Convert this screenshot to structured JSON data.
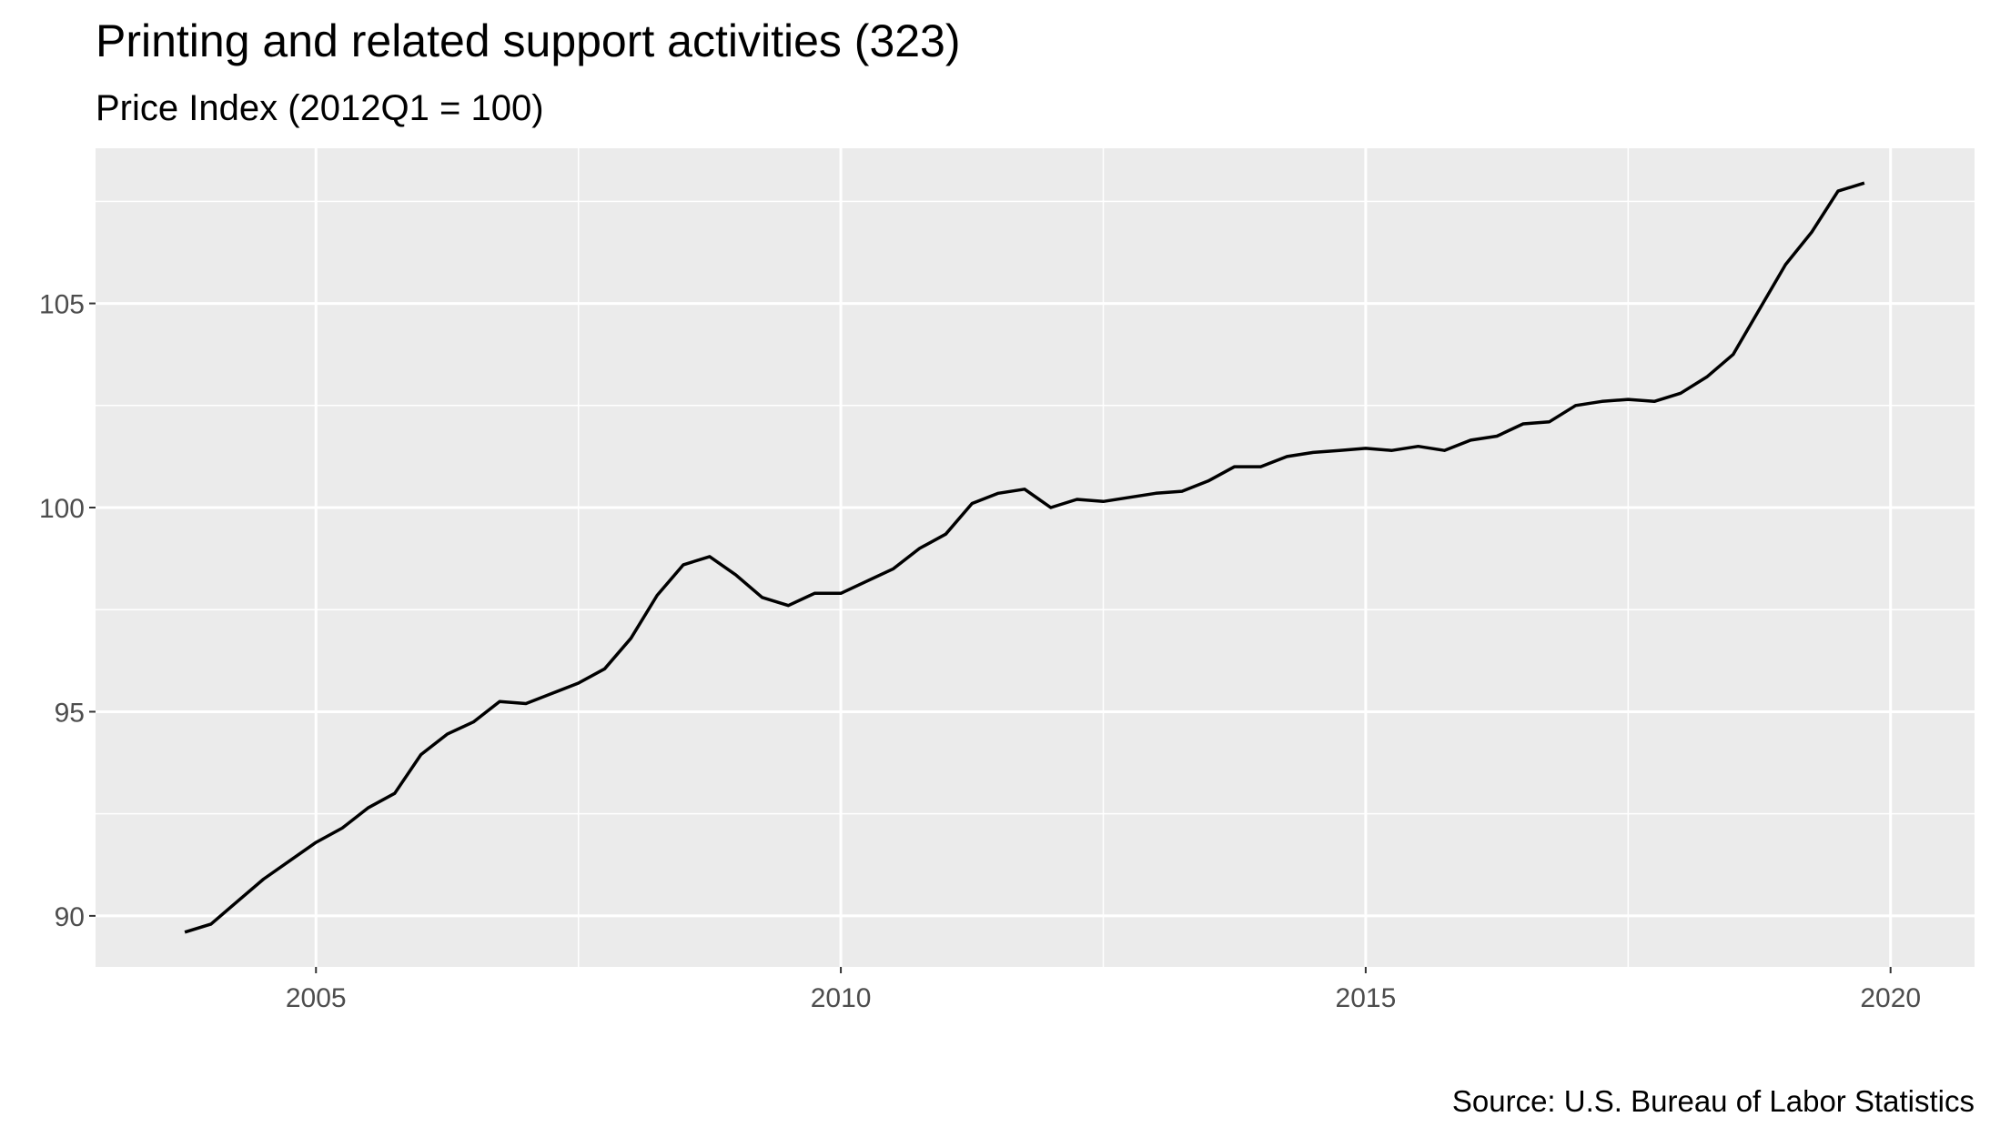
{
  "chart_data": {
    "type": "line",
    "title": "Printing and related support activities (323)",
    "subtitle": "Price Index (2012Q1 = 100)",
    "caption": "Source: U.S. Bureau of Labor Statistics",
    "xlabel": "",
    "ylabel": "",
    "xlim": [
      2002.9,
      2020.8
    ],
    "ylim": [
      88.75,
      108.8
    ],
    "x_ticks": [
      2005,
      2010,
      2015,
      2020
    ],
    "y_ticks": [
      90,
      95,
      100,
      105
    ],
    "grid": true,
    "colors": {
      "panel": "#ebebeb",
      "grid": "#ffffff",
      "line": "#000000",
      "tick_text": "#4d4d4d"
    },
    "series": [
      {
        "x": [
          2003.75,
          2004.0,
          2004.25,
          2004.5,
          2004.75,
          2005.0,
          2005.25,
          2005.5,
          2005.75,
          2006.0,
          2006.25,
          2006.5,
          2006.75,
          2007.0,
          2007.25,
          2007.5,
          2007.75,
          2008.0,
          2008.25,
          2008.5,
          2008.75,
          2009.0,
          2009.25,
          2009.5,
          2009.75,
          2010.0,
          2010.25,
          2010.5,
          2010.75,
          2011.0,
          2011.25,
          2011.5,
          2011.75,
          2012.0,
          2012.25,
          2012.5,
          2012.75,
          2013.0,
          2013.25,
          2013.5,
          2013.75,
          2014.0,
          2014.25,
          2014.5,
          2014.75,
          2015.0,
          2015.25,
          2015.5,
          2015.75,
          2016.0,
          2016.25,
          2016.5,
          2016.75,
          2017.0,
          2017.25,
          2017.5,
          2017.75,
          2018.0,
          2018.25,
          2018.5,
          2018.75,
          2019.0,
          2019.25,
          2019.5,
          2019.75
        ],
        "y": [
          89.6,
          89.8,
          90.35,
          90.9,
          91.35,
          91.8,
          92.15,
          92.65,
          93.0,
          93.95,
          94.45,
          94.75,
          95.25,
          95.2,
          95.45,
          95.7,
          96.05,
          96.8,
          97.85,
          98.6,
          98.8,
          98.35,
          97.8,
          97.6,
          97.9,
          97.9,
          98.2,
          98.5,
          99.0,
          99.35,
          100.1,
          100.35,
          100.45,
          100.0,
          100.2,
          100.15,
          100.25,
          100.35,
          100.4,
          100.65,
          101.0,
          101.0,
          101.25,
          101.35,
          101.4,
          101.45,
          101.4,
          101.5,
          101.4,
          101.65,
          101.75,
          102.05,
          102.1,
          102.5,
          102.6,
          102.65,
          102.6,
          102.8,
          103.2,
          103.75,
          104.85,
          105.95,
          106.75,
          107.75,
          107.95
        ]
      }
    ]
  }
}
